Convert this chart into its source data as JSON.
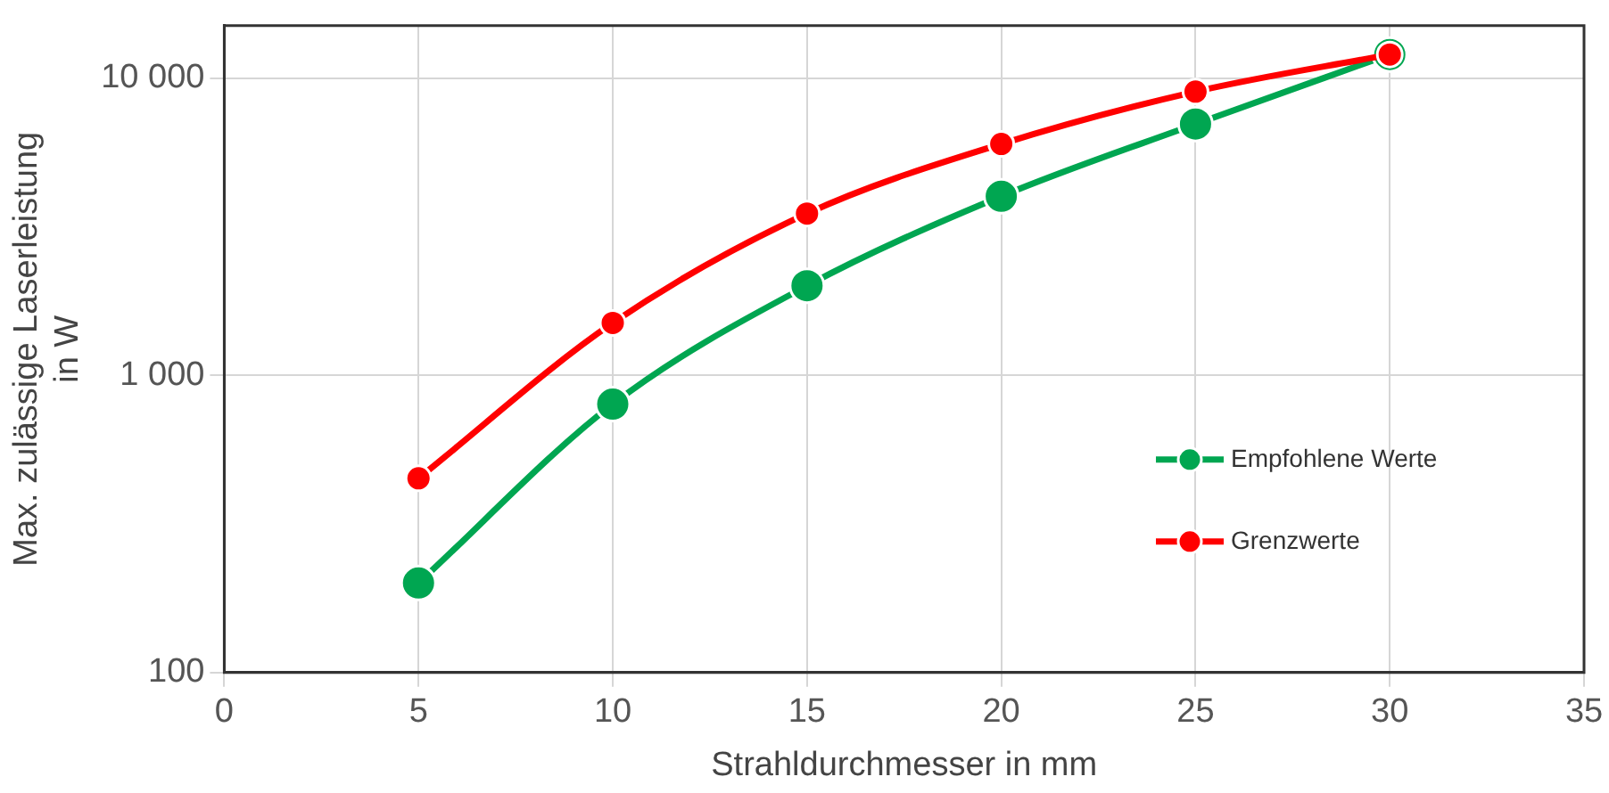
{
  "chart_data": {
    "type": "line",
    "xlabel": "Strahldurchmesser in mm",
    "ylabel": "Max. zulässige Laserleistung\nin W",
    "x": [
      5,
      10,
      15,
      20,
      25,
      30
    ],
    "series": [
      {
        "name": "Empfohlene Werte",
        "color": "#00a651",
        "values": [
          200,
          800,
          2000,
          4000,
          7000,
          12000
        ]
      },
      {
        "name": "Grenzwerte",
        "color": "#ff0000",
        "values": [
          450,
          1500,
          3500,
          6000,
          9000,
          12000
        ]
      }
    ],
    "xlim": [
      0,
      35
    ],
    "xticks": [
      0,
      5,
      10,
      15,
      20,
      25,
      30,
      35
    ],
    "ylim": [
      100,
      15000
    ],
    "yticks": [
      100,
      {
        "value": 1000,
        "label": "1 000"
      },
      {
        "value": 10000,
        "label": "10 000"
      }
    ],
    "log": "y",
    "grid": true,
    "legend": "right",
    "marker": "circle",
    "line_style": "solid"
  }
}
